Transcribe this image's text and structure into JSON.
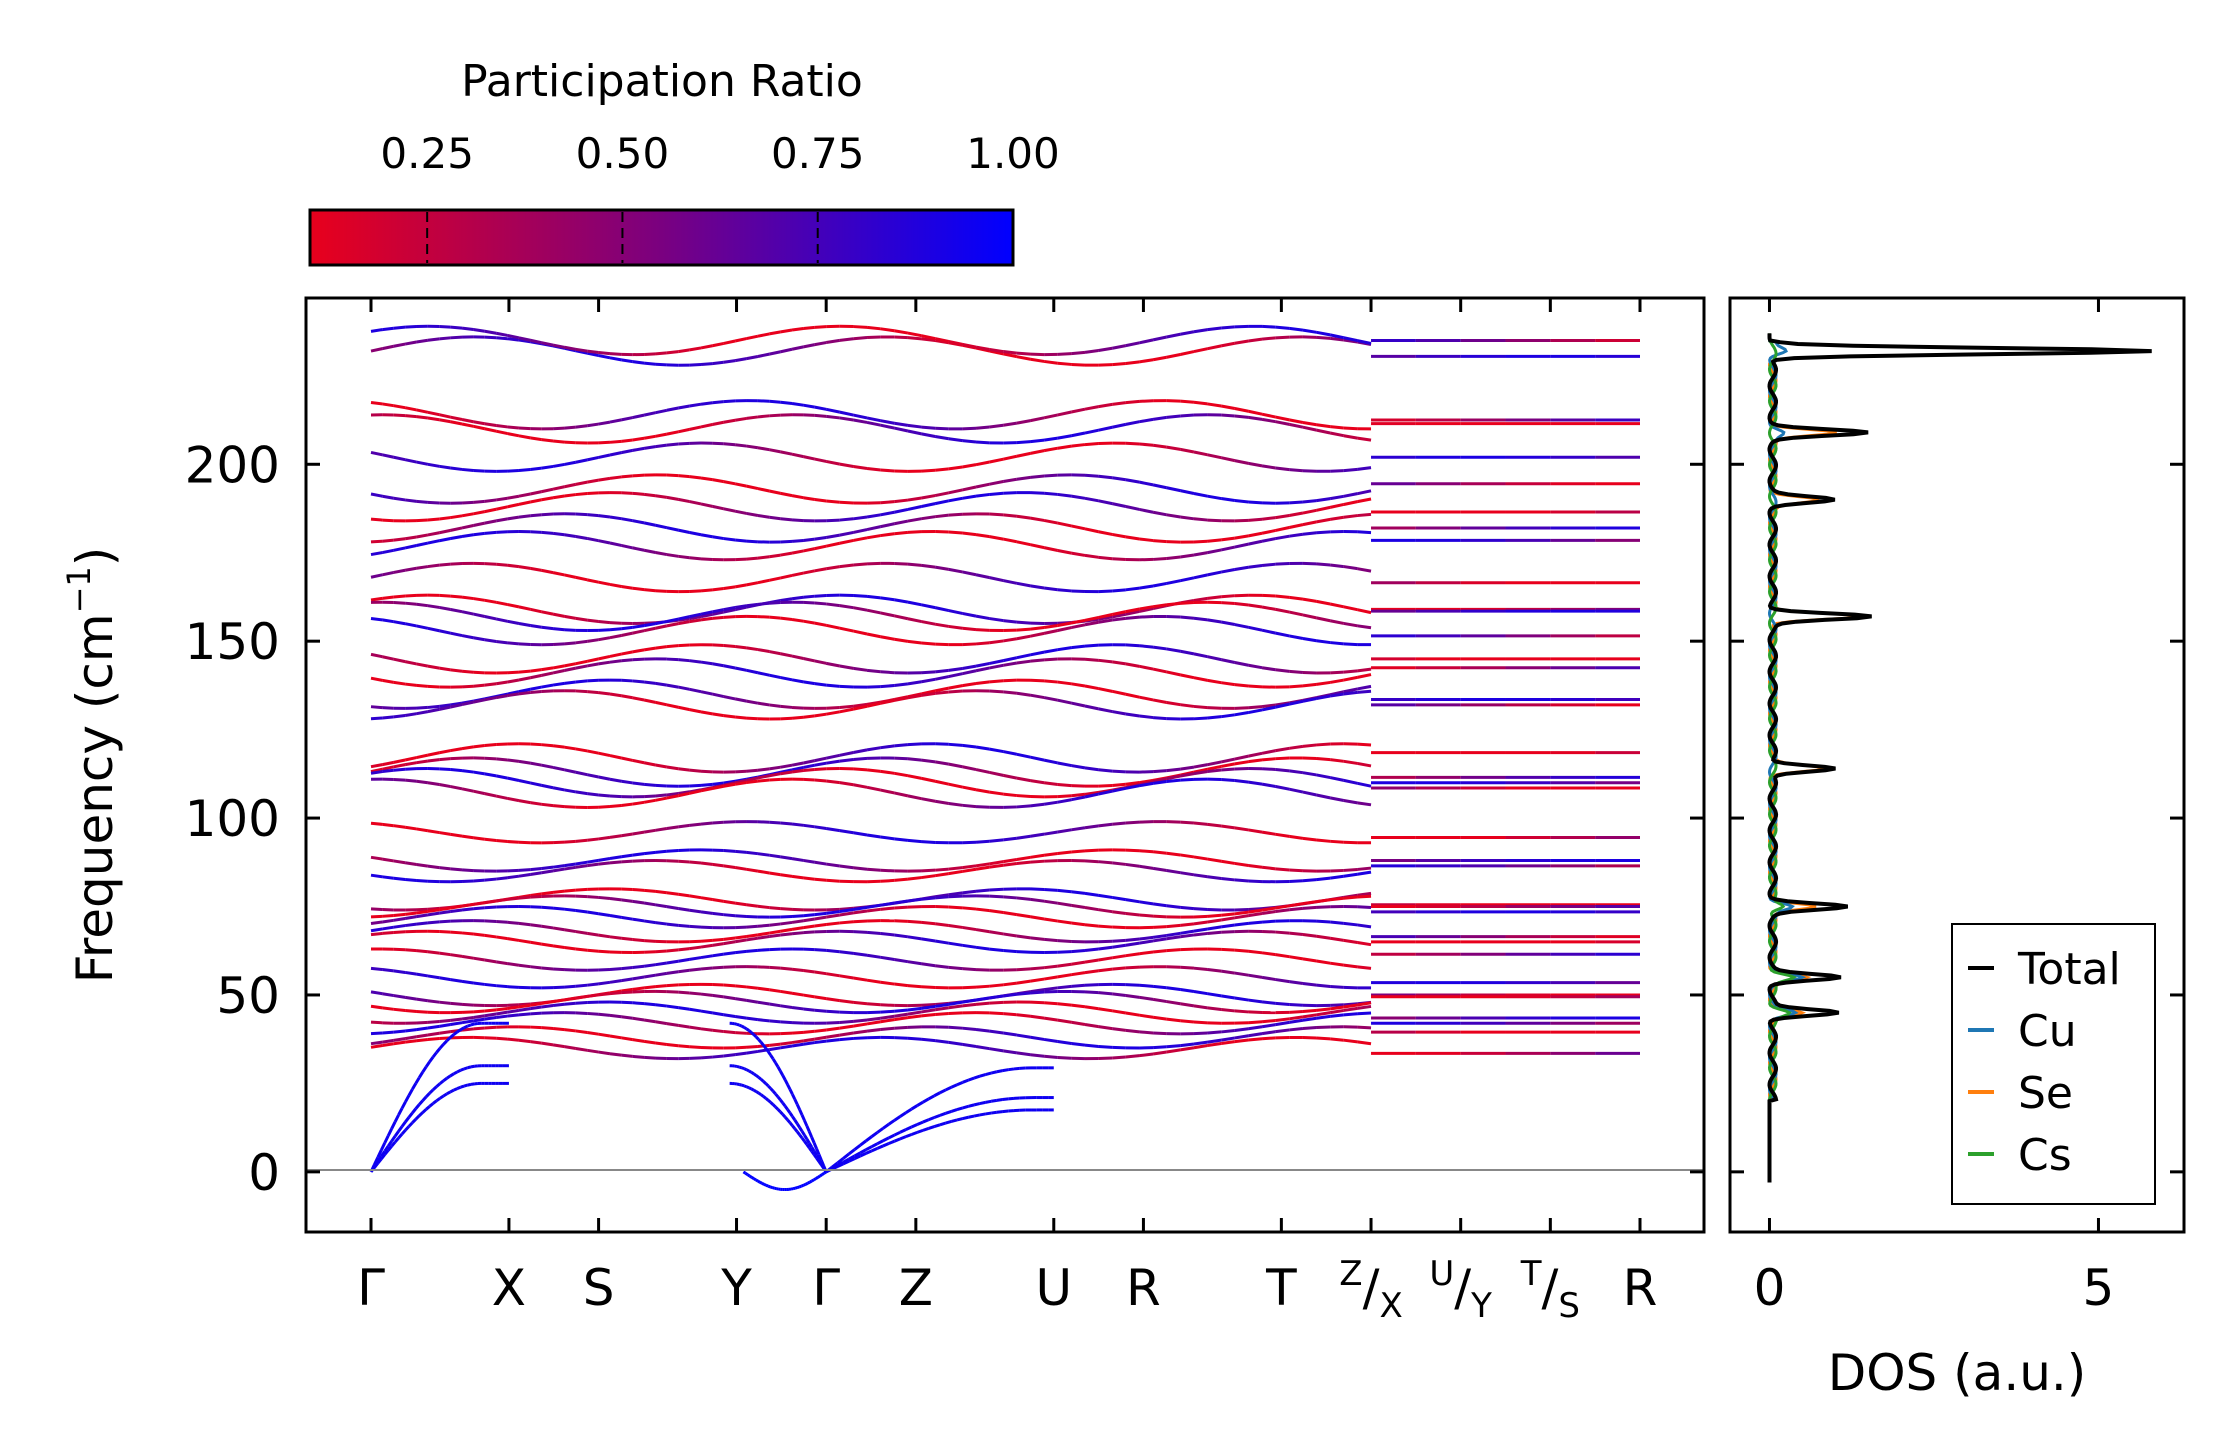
{
  "chart_data": [
    {
      "type": "line",
      "title": "",
      "xlabel": "",
      "ylabel": "Frequency (cm⁻¹)",
      "ylim": [
        -17,
        247
      ],
      "yticks": [
        0,
        50,
        100,
        150,
        200
      ],
      "kpoints": [
        {
          "label": "Γ",
          "pos": 0.0
        },
        {
          "label": "X",
          "pos": 1.0
        },
        {
          "label": "S",
          "pos": 1.65
        },
        {
          "label": "Y",
          "pos": 2.65
        },
        {
          "label": "Γ",
          "pos": 3.3
        },
        {
          "label": "Z",
          "pos": 3.95
        },
        {
          "label": "U",
          "pos": 4.95
        },
        {
          "label": "R",
          "pos": 5.6
        },
        {
          "label": "T",
          "pos": 6.6
        },
        {
          "label": "Z/X",
          "pos": 7.25
        },
        {
          "label": "U/Y",
          "pos": 7.9
        },
        {
          "label": "T/S",
          "pos": 8.55
        },
        {
          "label": "R",
          "pos": 9.2
        }
      ],
      "zero_line": 0,
      "colorbar": {
        "label": "Participation Ratio",
        "range": [
          0.1,
          1.0
        ],
        "ticks": [
          "0.25",
          "0.50",
          "0.75",
          "1.00"
        ],
        "tick_values": [
          0.25,
          0.5,
          0.75,
          1.0
        ],
        "color_low": "#e8001c",
        "color_mid": "#7a0080",
        "color_high": "#0000ff"
      },
      "bands": {
        "high_levels_cm1": [
          232,
          235,
          210,
          214,
          202,
          193,
          188,
          182,
          177,
          168,
          159,
          157,
          153,
          145,
          141,
          135,
          132,
          117,
          113,
          110,
          107,
          96,
          88,
          85,
          77,
          75,
          72,
          68,
          65,
          60,
          55,
          50,
          48,
          45,
          42,
          38,
          35
        ],
        "acoustic_max_cm1": [
          42,
          30,
          25
        ],
        "imaginary_min_cm1": -5
      }
    },
    {
      "type": "line",
      "title": "",
      "xlabel": "DOS (a.u.)",
      "ylabel": "",
      "xlim": [
        -0.6,
        6.3
      ],
      "xticks": [
        0,
        5
      ],
      "xtick_labels": [
        "0",
        "5"
      ],
      "legend_location": "bottom-right",
      "series": [
        {
          "name": "Total",
          "color": "#000000",
          "peaks": [
            [
              232,
              5.8
            ],
            [
              209,
              1.4
            ],
            [
              190,
              0.9
            ],
            [
              157,
              1.5
            ],
            [
              114,
              1.0
            ],
            [
              75,
              1.1
            ],
            [
              55,
              1.0
            ],
            [
              45,
              1.0
            ]
          ]
        },
        {
          "name": "Cu",
          "color": "#1f77b4",
          "peaks": [
            [
              232,
              0.2
            ],
            [
              209,
              0.15
            ],
            [
              75,
              0.3
            ],
            [
              55,
              0.4
            ],
            [
              45,
              0.3
            ]
          ]
        },
        {
          "name": "Se",
          "color": "#ff7f0e",
          "peaks": [
            [
              232,
              5.7
            ],
            [
              209,
              1.0
            ],
            [
              190,
              0.7
            ],
            [
              157,
              1.4
            ],
            [
              114,
              0.8
            ],
            [
              75,
              0.7
            ],
            [
              55,
              0.5
            ],
            [
              45,
              0.4
            ]
          ]
        },
        {
          "name": "Cs",
          "color": "#2ca02c",
          "peaks": [
            [
              75,
              0.2
            ],
            [
              55,
              0.35
            ],
            [
              45,
              0.25
            ]
          ]
        }
      ]
    }
  ]
}
